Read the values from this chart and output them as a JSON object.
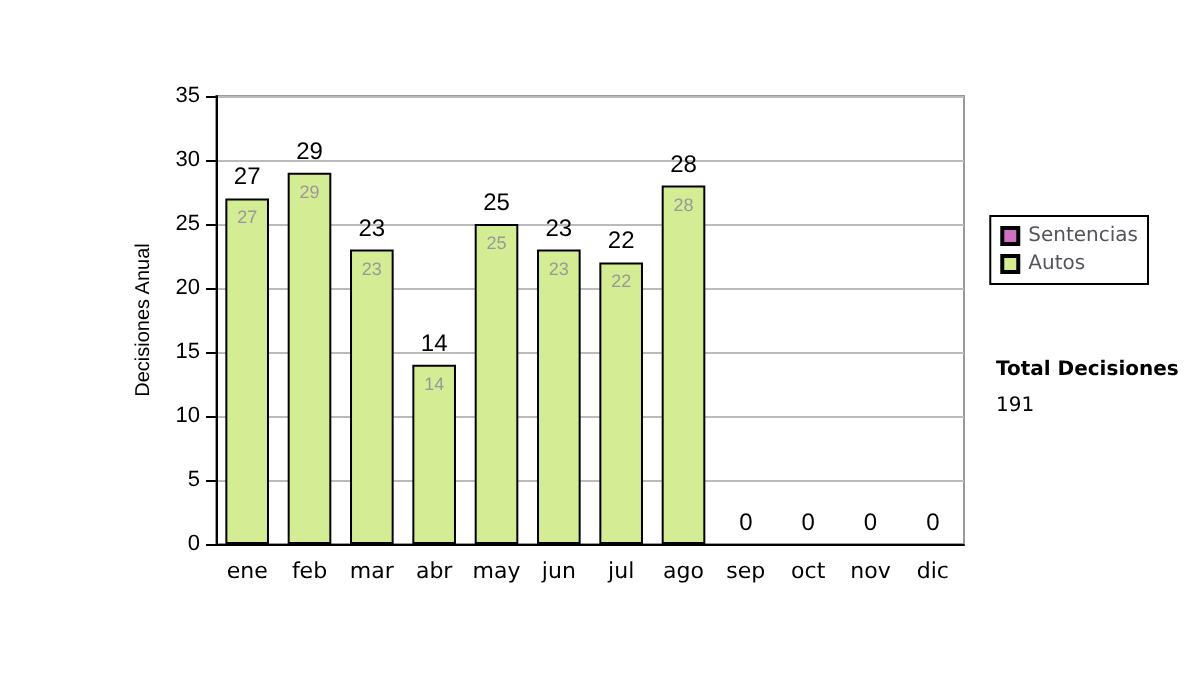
{
  "chart_data": {
    "type": "bar",
    "ylabel": "Decisiones Anual",
    "categories": [
      "ene",
      "feb",
      "mar",
      "abr",
      "may",
      "jun",
      "jul",
      "ago",
      "sep",
      "oct",
      "nov",
      "dic"
    ],
    "series": [
      {
        "name": "Autos",
        "color": "#d4ec94",
        "values": [
          27,
          29,
          23,
          14,
          25,
          23,
          22,
          28,
          0,
          0,
          0,
          0
        ],
        "value_labels": [
          "27",
          "29",
          "23",
          "14",
          "25",
          "23",
          "22",
          "28",
          null,
          null,
          null,
          null
        ]
      },
      {
        "name": "Sentencias",
        "color": "#d070c0",
        "values": [
          0,
          0,
          0,
          0,
          0,
          0,
          0,
          0,
          0,
          0,
          0,
          0
        ]
      }
    ],
    "stacked": true,
    "totals": [
      "27",
      "29",
      "23",
      "14",
      "25",
      "23",
      "22",
      "28",
      "0",
      "0",
      "0",
      "0"
    ],
    "ylim": [
      0,
      35
    ],
    "yticks": [
      0,
      5,
      10,
      15,
      20,
      25,
      30,
      35
    ],
    "grid": "y",
    "legend": "right",
    "annotations": [
      "Total Decisiones",
      "191"
    ]
  }
}
